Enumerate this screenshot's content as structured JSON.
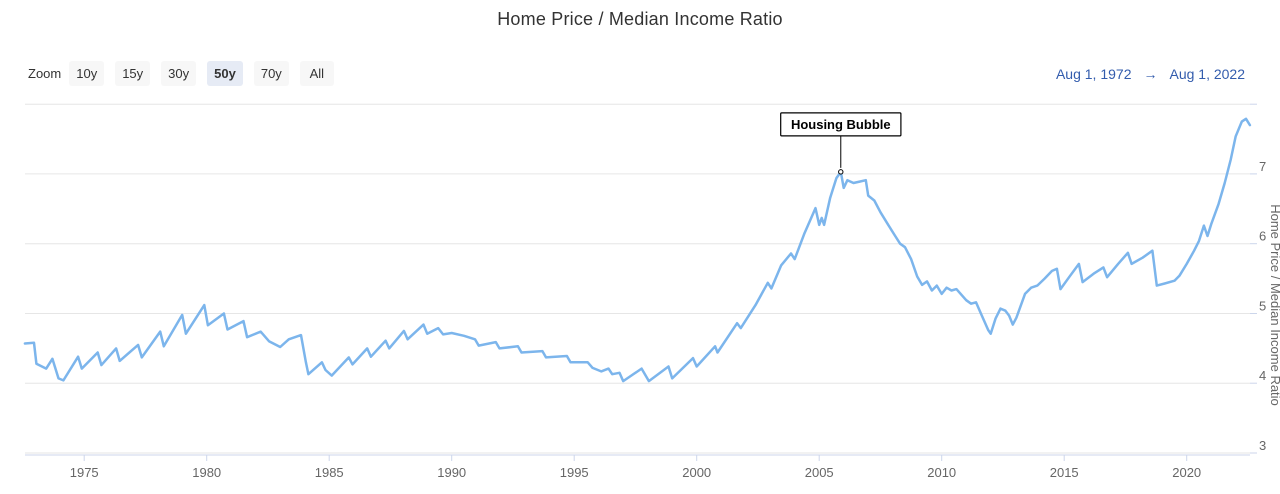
{
  "header": {
    "title": "Home Price / Median Income Ratio"
  },
  "range_selector": {
    "zoom_label": "Zoom",
    "buttons": [
      {
        "label": "10y",
        "selected": false
      },
      {
        "label": "15y",
        "selected": false
      },
      {
        "label": "30y",
        "selected": false
      },
      {
        "label": "50y",
        "selected": true
      },
      {
        "label": "70y",
        "selected": false
      },
      {
        "label": "All",
        "selected": false
      }
    ],
    "date_from": "Aug 1, 1972",
    "date_arrow": "→",
    "date_to": "Aug 1, 2022"
  },
  "colors": {
    "line": "#7cb5ec",
    "grid": "#e6e6e6",
    "axis": "#ccd6eb",
    "axis_label": "#666666",
    "title": "#333333",
    "annotation_border": "#000000",
    "range_text": "#335cad"
  },
  "chart_data": {
    "type": "line",
    "title": "Home Price / Median Income Ratio",
    "xlabel": "",
    "ylabel": "Home Price / Median Income Ratio",
    "x_range": [
      1972.583,
      2022.583
    ],
    "y_range": [
      3,
      8.06
    ],
    "x_ticks": [
      1975,
      1980,
      1985,
      1990,
      1995,
      2000,
      2005,
      2010,
      2015,
      2020
    ],
    "y_ticks": [
      3,
      4,
      5,
      6,
      7
    ],
    "y_gridlines": [
      3,
      4,
      5,
      6,
      7,
      8
    ],
    "grid": "horizontal",
    "legend": "none",
    "annotation": {
      "label": "Housing Bubble",
      "x": 2005.88,
      "y": 7.03
    },
    "series": [
      {
        "name": "Home Price / Median Income Ratio",
        "points": [
          [
            1972.58,
            4.57
          ],
          [
            1972.95,
            4.58
          ],
          [
            1973.05,
            4.28
          ],
          [
            1973.45,
            4.21
          ],
          [
            1973.7,
            4.35
          ],
          [
            1973.95,
            4.07
          ],
          [
            1974.15,
            4.04
          ],
          [
            1974.75,
            4.38
          ],
          [
            1974.9,
            4.21
          ],
          [
            1975.55,
            4.44
          ],
          [
            1975.7,
            4.26
          ],
          [
            1976.3,
            4.5
          ],
          [
            1976.45,
            4.32
          ],
          [
            1977.2,
            4.55
          ],
          [
            1977.35,
            4.37
          ],
          [
            1978.1,
            4.74
          ],
          [
            1978.25,
            4.53
          ],
          [
            1979.0,
            4.98
          ],
          [
            1979.15,
            4.71
          ],
          [
            1979.9,
            5.12
          ],
          [
            1980.05,
            4.83
          ],
          [
            1980.7,
            5.0
          ],
          [
            1980.85,
            4.77
          ],
          [
            1981.5,
            4.89
          ],
          [
            1981.65,
            4.66
          ],
          [
            1982.2,
            4.74
          ],
          [
            1982.55,
            4.6
          ],
          [
            1983.0,
            4.52
          ],
          [
            1983.35,
            4.63
          ],
          [
            1983.85,
            4.69
          ],
          [
            1984.05,
            4.3
          ],
          [
            1984.15,
            4.13
          ],
          [
            1984.7,
            4.3
          ],
          [
            1984.85,
            4.19
          ],
          [
            1985.1,
            4.11
          ],
          [
            1985.8,
            4.37
          ],
          [
            1985.95,
            4.27
          ],
          [
            1986.55,
            4.5
          ],
          [
            1986.7,
            4.38
          ],
          [
            1987.3,
            4.61
          ],
          [
            1987.45,
            4.5
          ],
          [
            1988.05,
            4.75
          ],
          [
            1988.2,
            4.63
          ],
          [
            1988.85,
            4.84
          ],
          [
            1989.0,
            4.71
          ],
          [
            1989.45,
            4.79
          ],
          [
            1989.65,
            4.7
          ],
          [
            1990.0,
            4.72
          ],
          [
            1990.5,
            4.68
          ],
          [
            1990.95,
            4.63
          ],
          [
            1991.1,
            4.54
          ],
          [
            1991.8,
            4.59
          ],
          [
            1991.95,
            4.5
          ],
          [
            1992.7,
            4.53
          ],
          [
            1992.85,
            4.44
          ],
          [
            1993.7,
            4.46
          ],
          [
            1993.85,
            4.37
          ],
          [
            1994.7,
            4.39
          ],
          [
            1994.85,
            4.3
          ],
          [
            1995.55,
            4.3
          ],
          [
            1995.75,
            4.22
          ],
          [
            1996.1,
            4.17
          ],
          [
            1996.4,
            4.21
          ],
          [
            1996.55,
            4.13
          ],
          [
            1996.85,
            4.15
          ],
          [
            1997.0,
            4.03
          ],
          [
            1997.75,
            4.21
          ],
          [
            1998.05,
            4.03
          ],
          [
            1998.85,
            4.24
          ],
          [
            1999.0,
            4.07
          ],
          [
            1999.85,
            4.36
          ],
          [
            2000.0,
            4.24
          ],
          [
            2000.75,
            4.53
          ],
          [
            2000.85,
            4.44
          ],
          [
            2001.65,
            4.86
          ],
          [
            2001.8,
            4.79
          ],
          [
            2002.4,
            5.12
          ],
          [
            2002.9,
            5.44
          ],
          [
            2003.05,
            5.36
          ],
          [
            2003.45,
            5.69
          ],
          [
            2003.85,
            5.86
          ],
          [
            2004.0,
            5.78
          ],
          [
            2004.4,
            6.15
          ],
          [
            2004.85,
            6.51
          ],
          [
            2005.0,
            6.27
          ],
          [
            2005.1,
            6.37
          ],
          [
            2005.2,
            6.27
          ],
          [
            2005.45,
            6.66
          ],
          [
            2005.7,
            6.94
          ],
          [
            2005.88,
            7.03
          ],
          [
            2006.0,
            6.8
          ],
          [
            2006.15,
            6.91
          ],
          [
            2006.4,
            6.87
          ],
          [
            2006.65,
            6.89
          ],
          [
            2006.9,
            6.91
          ],
          [
            2007.0,
            6.69
          ],
          [
            2007.25,
            6.62
          ],
          [
            2007.5,
            6.45
          ],
          [
            2007.8,
            6.28
          ],
          [
            2008.1,
            6.11
          ],
          [
            2008.3,
            6.0
          ],
          [
            2008.5,
            5.95
          ],
          [
            2008.75,
            5.78
          ],
          [
            2009.0,
            5.53
          ],
          [
            2009.2,
            5.41
          ],
          [
            2009.4,
            5.46
          ],
          [
            2009.6,
            5.33
          ],
          [
            2009.8,
            5.4
          ],
          [
            2010.0,
            5.28
          ],
          [
            2010.2,
            5.37
          ],
          [
            2010.4,
            5.33
          ],
          [
            2010.6,
            5.35
          ],
          [
            2011.0,
            5.19
          ],
          [
            2011.2,
            5.14
          ],
          [
            2011.4,
            5.16
          ],
          [
            2011.6,
            5.0
          ],
          [
            2011.9,
            4.76
          ],
          [
            2012.0,
            4.71
          ],
          [
            2012.2,
            4.93
          ],
          [
            2012.4,
            5.07
          ],
          [
            2012.6,
            5.04
          ],
          [
            2012.75,
            4.97
          ],
          [
            2012.9,
            4.84
          ],
          [
            2013.05,
            4.94
          ],
          [
            2013.4,
            5.28
          ],
          [
            2013.65,
            5.37
          ],
          [
            2013.9,
            5.4
          ],
          [
            2014.2,
            5.5
          ],
          [
            2014.5,
            5.61
          ],
          [
            2014.7,
            5.64
          ],
          [
            2014.85,
            5.35
          ],
          [
            2015.2,
            5.52
          ],
          [
            2015.6,
            5.71
          ],
          [
            2015.75,
            5.45
          ],
          [
            2016.2,
            5.57
          ],
          [
            2016.6,
            5.66
          ],
          [
            2016.75,
            5.52
          ],
          [
            2017.2,
            5.71
          ],
          [
            2017.6,
            5.87
          ],
          [
            2017.75,
            5.71
          ],
          [
            2018.2,
            5.8
          ],
          [
            2018.6,
            5.9
          ],
          [
            2018.78,
            5.4
          ],
          [
            2019.1,
            5.43
          ],
          [
            2019.5,
            5.47
          ],
          [
            2019.7,
            5.54
          ],
          [
            2020.0,
            5.71
          ],
          [
            2020.3,
            5.9
          ],
          [
            2020.5,
            6.04
          ],
          [
            2020.7,
            6.26
          ],
          [
            2020.85,
            6.11
          ],
          [
            2021.0,
            6.28
          ],
          [
            2021.3,
            6.57
          ],
          [
            2021.55,
            6.87
          ],
          [
            2021.8,
            7.21
          ],
          [
            2022.0,
            7.54
          ],
          [
            2022.25,
            7.75
          ],
          [
            2022.42,
            7.79
          ],
          [
            2022.58,
            7.7
          ]
        ]
      }
    ]
  }
}
